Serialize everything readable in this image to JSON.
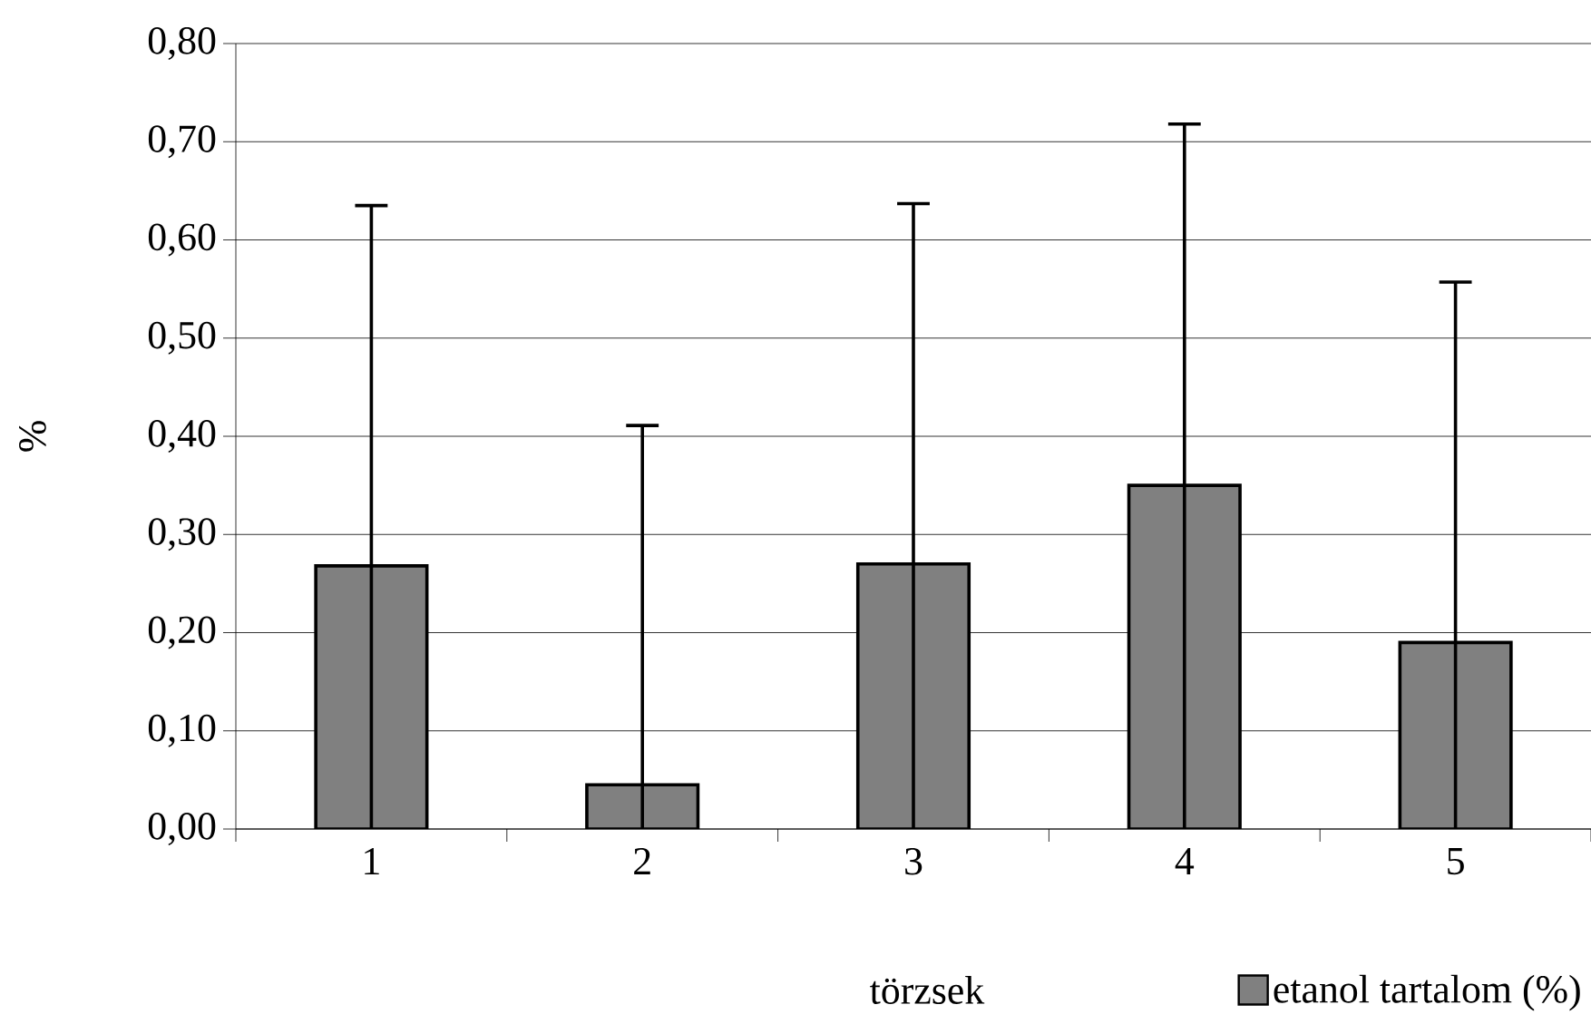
{
  "chart_data": {
    "type": "bar",
    "xlabel": "törzsek",
    "ylabel": "%",
    "categories": [
      "1",
      "2",
      "3",
      "4",
      "5"
    ],
    "series": [
      {
        "name": "etanol tartalom (%)",
        "color": "#808080",
        "values": [
          0.268,
          0.045,
          0.27,
          0.35,
          0.19
        ],
        "errors": [
          [
            0,
            0.635
          ],
          [
            0,
            0.411
          ],
          [
            0,
            0.637
          ],
          [
            0,
            0.718
          ],
          [
            0,
            0.557
          ]
        ]
      }
    ],
    "ylim": [
      0,
      0.8
    ],
    "yticks": [
      {
        "value": 0,
        "label": "0,00"
      },
      {
        "value": 0.1,
        "label": "0,10"
      },
      {
        "value": 0.2,
        "label": "0,20"
      },
      {
        "value": 0.3,
        "label": "0,30"
      },
      {
        "value": 0.4,
        "label": "0,40"
      },
      {
        "value": 0.5,
        "label": "0,50"
      },
      {
        "value": 0.6,
        "label": "0,60"
      },
      {
        "value": 0.7,
        "label": "0,70"
      },
      {
        "value": 0.8,
        "label": "0,80"
      }
    ],
    "grid": "y",
    "legend": "bottom right"
  }
}
